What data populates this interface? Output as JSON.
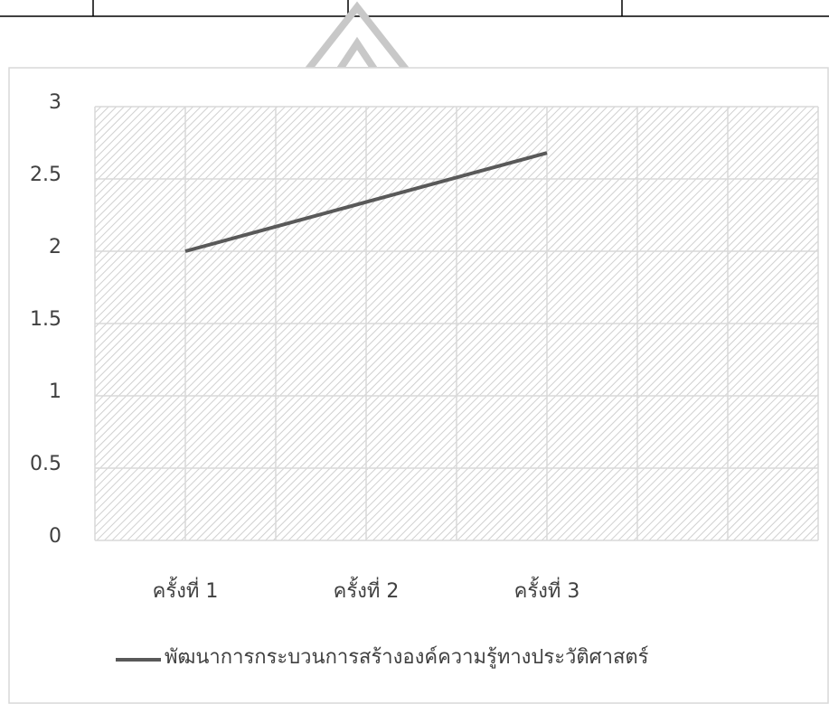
{
  "chart_data": {
    "type": "line",
    "categories": [
      "ครั้งที่ 1",
      "ครั้งที่ 2",
      "ครั้งที่ 3",
      null
    ],
    "series": [
      {
        "name": "พัฒนาการกระบวนการสร้างองค์ความรู้ทางประวัติศาสตร์",
        "color": "#595959",
        "values": [
          2,
          2.34,
          2.68,
          null
        ]
      }
    ],
    "ylim": [
      0,
      3
    ],
    "yticks": [
      0,
      0.5,
      1,
      1.5,
      2,
      2.5,
      3
    ],
    "grid": true,
    "legend": "bottom"
  }
}
